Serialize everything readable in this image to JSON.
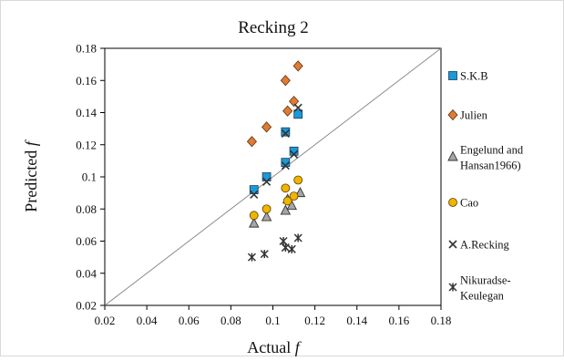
{
  "chart_data": {
    "type": "scatter",
    "title": "Recking 2",
    "xlabel": "Actual f",
    "ylabel": "Predicted f",
    "xlim": [
      0.02,
      0.18
    ],
    "ylim": [
      0.02,
      0.18
    ],
    "x_ticks": [
      "0.02",
      "0.04",
      "0.06",
      "0.08",
      "0.1",
      "0.12",
      "0.14",
      "0.16",
      "0.18"
    ],
    "y_ticks": [
      "0.02",
      "0.04",
      "0.06",
      "0.08",
      "0.1",
      "0.12",
      "0.14",
      "0.16",
      "0.18"
    ],
    "grid": false,
    "legend_position": "right",
    "reference_line": {
      "type": "y=x"
    },
    "series": [
      {
        "name": "S.K.B",
        "marker": "square",
        "color": "#1a9ad6",
        "points": [
          [
            0.091,
            0.092
          ],
          [
            0.097,
            0.1
          ],
          [
            0.106,
            0.128
          ],
          [
            0.106,
            0.109
          ],
          [
            0.11,
            0.116
          ],
          [
            0.112,
            0.139
          ]
        ]
      },
      {
        "name": "Julien",
        "marker": "diamond",
        "color": "#e07b32",
        "points": [
          [
            0.09,
            0.122
          ],
          [
            0.097,
            0.131
          ],
          [
            0.106,
            0.16
          ],
          [
            0.107,
            0.141
          ],
          [
            0.11,
            0.147
          ],
          [
            0.112,
            0.169
          ]
        ]
      },
      {
        "name": "Engelund and Hansan1966)",
        "legend_lines": [
          "Engelund and",
          "Hansan1966)"
        ],
        "marker": "triangle",
        "color": "#a6a6a6",
        "points": [
          [
            0.091,
            0.071
          ],
          [
            0.097,
            0.075
          ],
          [
            0.106,
            0.079
          ],
          [
            0.107,
            0.086
          ],
          [
            0.109,
            0.082
          ],
          [
            0.113,
            0.09
          ]
        ]
      },
      {
        "name": "Cao",
        "marker": "circle",
        "color": "#f0b400",
        "points": [
          [
            0.091,
            0.076
          ],
          [
            0.097,
            0.08
          ],
          [
            0.106,
            0.093
          ],
          [
            0.107,
            0.085
          ],
          [
            0.11,
            0.088
          ],
          [
            0.112,
            0.098
          ]
        ]
      },
      {
        "name": "A.Recking",
        "marker": "x",
        "color": "#333333",
        "points": [
          [
            0.091,
            0.089
          ],
          [
            0.097,
            0.097
          ],
          [
            0.106,
            0.107
          ],
          [
            0.106,
            0.127
          ],
          [
            0.11,
            0.114
          ],
          [
            0.112,
            0.143
          ]
        ]
      },
      {
        "name": "Nikuradse-Keulegan",
        "legend_lines": [
          "Nikuradse-",
          "Keulegan"
        ],
        "marker": "star",
        "color": "#333333",
        "points": [
          [
            0.09,
            0.05
          ],
          [
            0.096,
            0.052
          ],
          [
            0.105,
            0.06
          ],
          [
            0.106,
            0.056
          ],
          [
            0.109,
            0.055
          ],
          [
            0.112,
            0.062
          ]
        ]
      }
    ]
  }
}
